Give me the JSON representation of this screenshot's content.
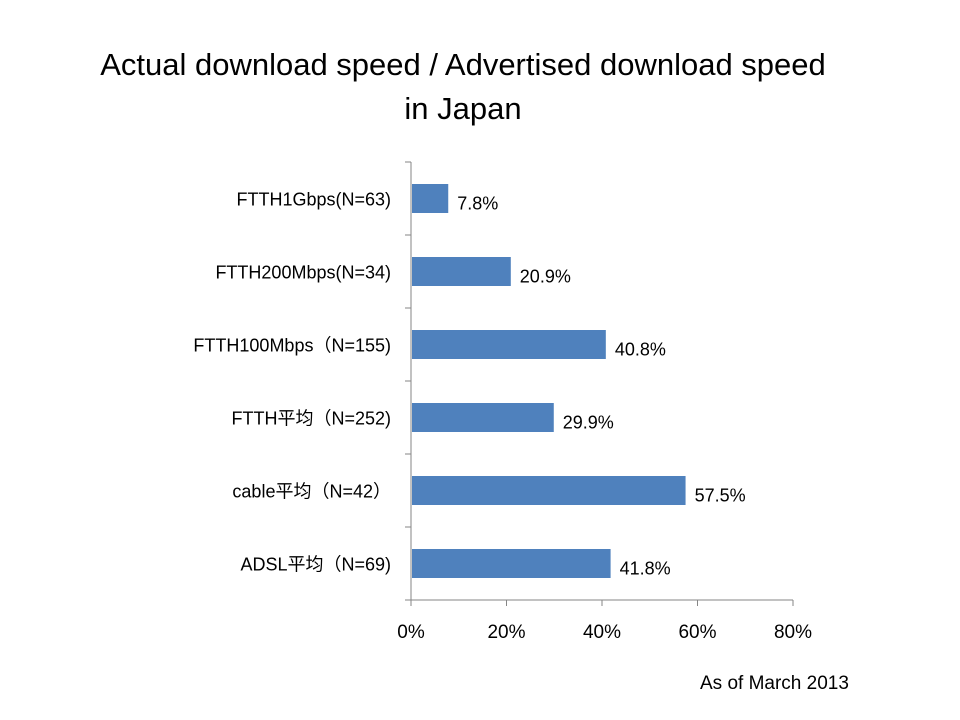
{
  "slide": {
    "title_line1": "Actual download speed / Advertised download speed",
    "title_line2": "in Japan",
    "footnote": "As of March 2013"
  },
  "chart_data": {
    "type": "bar",
    "orientation": "horizontal",
    "title": "Actual download speed / Advertised download speed in Japan",
    "categories": [
      "FTTH1Gbps(N=63)",
      "FTTH200Mbps(N=34)",
      "FTTH100Mbps（N=155)",
      "FTTH平均（N=252)",
      "cable平均（N=42）",
      "ADSL平均（N=69)"
    ],
    "values": [
      7.8,
      20.9,
      40.8,
      29.9,
      57.5,
      41.8
    ],
    "value_labels": [
      "7.8%",
      "20.9%",
      "40.8%",
      "29.9%",
      "57.5%",
      "41.8%"
    ],
    "xlim": [
      0,
      80
    ],
    "x_ticks": [
      0,
      20,
      40,
      60,
      80
    ],
    "x_tick_labels": [
      "0%",
      "20%",
      "40%",
      "60%",
      "80%"
    ],
    "grid": false,
    "legend": "none",
    "bar_color": "#4f81bd"
  }
}
